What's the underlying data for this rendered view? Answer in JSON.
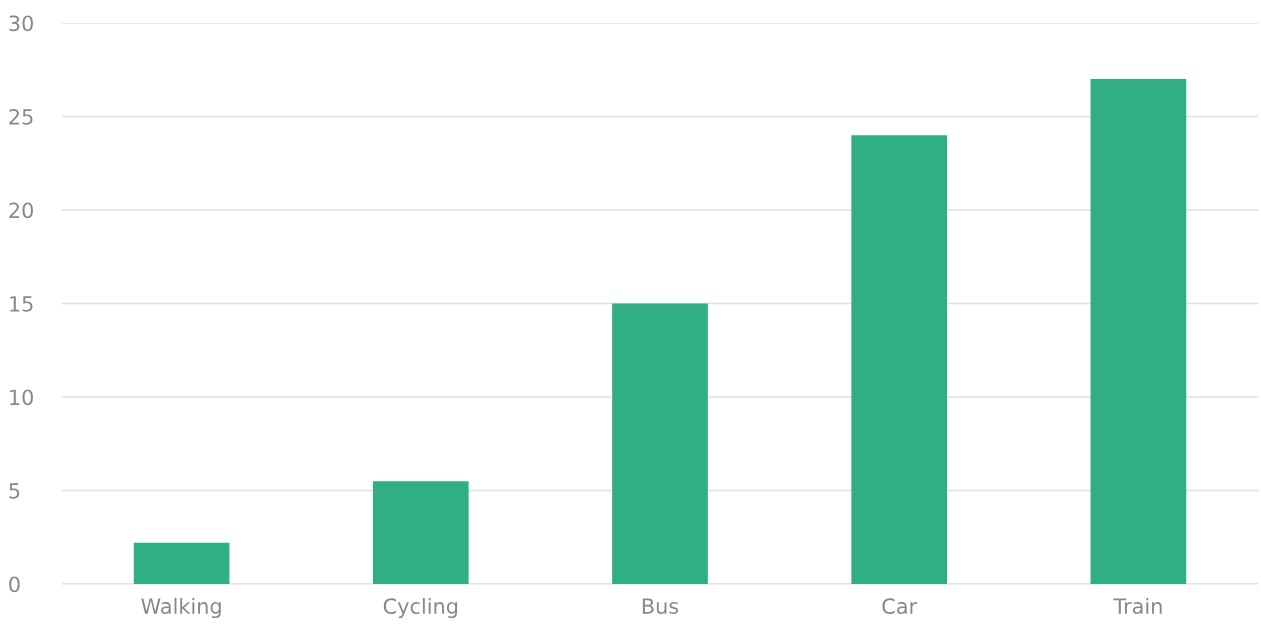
{
  "chart_data": {
    "type": "bar",
    "categories": [
      "Walking",
      "Cycling",
      "Bus",
      "Car",
      "Train"
    ],
    "values": [
      2.2,
      5.5,
      15,
      24,
      27
    ],
    "color": "#30af85",
    "ylim": [
      0,
      30
    ],
    "yticks": [
      0,
      5,
      10,
      15,
      20,
      25,
      30
    ],
    "grid": "y"
  }
}
